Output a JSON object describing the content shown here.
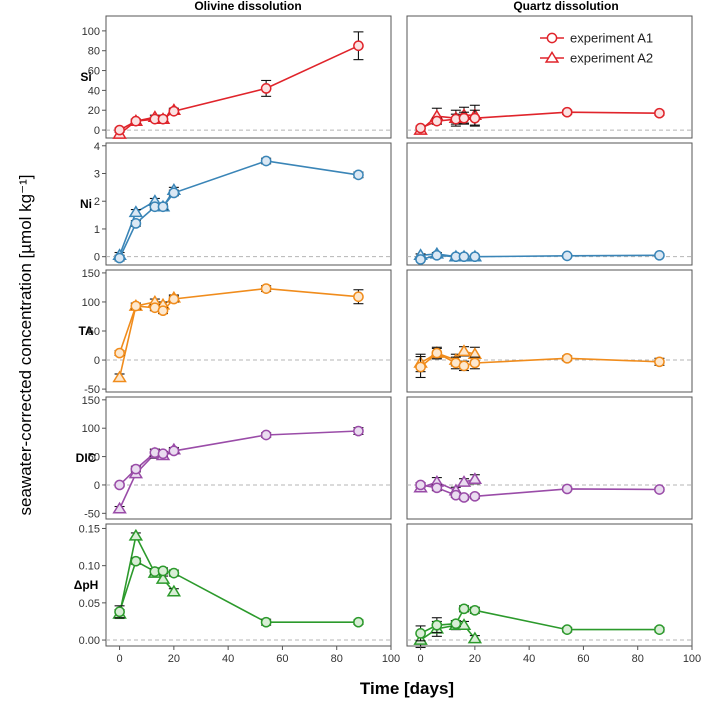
{
  "chart_data": {
    "type": "line",
    "x_axis": {
      "label": "Time [days]",
      "range": [
        -5,
        100
      ],
      "ticks": [
        0,
        20,
        40,
        60,
        80,
        100
      ]
    },
    "y_axis_label": "seawater-corrected concentration [µmol kg⁻¹]",
    "columns": [
      "Olivine dissolution",
      "Quartz dissolution"
    ],
    "legend": {
      "A1": {
        "label": "experiment A1",
        "marker": "circle"
      },
      "A2": {
        "label": "experiment A2",
        "marker": "triangle"
      }
    },
    "rows": [
      {
        "label": "Si",
        "color": "#e0242b",
        "fill": "#fbe2e2",
        "ylim": [
          -8,
          115
        ],
        "yticks": [
          0,
          20,
          40,
          60,
          80,
          100
        ],
        "olivine": {
          "A1": {
            "x": [
              0,
              6,
              13,
              16,
              20,
              54,
              88
            ],
            "y": [
              0,
              9,
              11,
              11,
              19,
              42,
              85
            ],
            "err": [
              2,
              2,
              2,
              2,
              2,
              8,
              14
            ]
          },
          "A2": {
            "x": [
              0,
              6,
              13,
              16,
              20
            ],
            "y": [
              -4,
              9,
              13,
              11,
              20
            ],
            "err": [
              2,
              2,
              2,
              2,
              2
            ]
          }
        },
        "quartz": {
          "A1": {
            "x": [
              0,
              6,
              13,
              16,
              20,
              54,
              88
            ],
            "y": [
              2,
              9,
              11,
              12,
              12,
              18,
              17
            ],
            "err": [
              2,
              3,
              5,
              6,
              8,
              2,
              2
            ]
          },
          "A2": {
            "x": [
              0,
              6,
              13,
              16,
              20
            ],
            "y": [
              0,
              14,
              12,
              15,
              15
            ],
            "err": [
              2,
              8,
              8,
              8,
              10
            ]
          }
        }
      },
      {
        "label": "Ni",
        "color": "#3a85b7",
        "fill": "#dbe8f4",
        "ylim": [
          -0.3,
          4.1
        ],
        "yticks": [
          0,
          1,
          2,
          3,
          4
        ],
        "olivine": {
          "A1": {
            "x": [
              0,
              6,
              13,
              16,
              20,
              54,
              88
            ],
            "y": [
              -0.05,
              1.2,
              1.8,
              1.8,
              2.3,
              3.45,
              2.95
            ],
            "err": [
              0.1,
              0.1,
              0.1,
              0.1,
              0.1,
              0.1,
              0.1
            ]
          },
          "A2": {
            "x": [
              0,
              6,
              13,
              16,
              20
            ],
            "y": [
              0.05,
              1.6,
              2.0,
              1.8,
              2.4
            ],
            "err": [
              0.1,
              0.1,
              0.1,
              0.1,
              0.1
            ]
          }
        },
        "quartz": {
          "A1": {
            "x": [
              0,
              6,
              13,
              16,
              20,
              54,
              88
            ],
            "y": [
              -0.1,
              0.05,
              0.0,
              0.0,
              0.0,
              0.03,
              0.05
            ],
            "err": [
              0.05,
              0.05,
              0.05,
              0.05,
              0.05,
              0.05,
              0.05
            ]
          },
          "A2": {
            "x": [
              0,
              6,
              13,
              16,
              20
            ],
            "y": [
              0.05,
              0.1,
              0.0,
              0.0,
              0.0
            ],
            "err": [
              0.05,
              0.05,
              0.05,
              0.05,
              0.05
            ]
          }
        }
      },
      {
        "label": "TA",
        "color": "#f08c1c",
        "fill": "#fde8cf",
        "ylim": [
          -55,
          155
        ],
        "yticks": [
          -50,
          0,
          50,
          100,
          150
        ],
        "olivine": {
          "A1": {
            "x": [
              0,
              6,
              13,
              16,
              20,
              54,
              88
            ],
            "y": [
              12,
              93,
              90,
              85,
              105,
              123,
              109
            ],
            "err": [
              4,
              5,
              5,
              5,
              5,
              5,
              12
            ]
          },
          "A2": {
            "x": [
              0,
              6,
              13,
              16,
              20
            ],
            "y": [
              -30,
              93,
              100,
              95,
              107
            ],
            "err": [
              6,
              5,
              5,
              5,
              5
            ]
          }
        },
        "quartz": {
          "A1": {
            "x": [
              0,
              6,
              13,
              16,
              20,
              54,
              88
            ],
            "y": [
              -12,
              12,
              -5,
              -10,
              -5,
              3,
              -3
            ],
            "err": [
              18,
              10,
              10,
              8,
              10,
              4,
              6
            ]
          },
          "A2": {
            "x": [
              0,
              6,
              13,
              16,
              20
            ],
            "y": [
              -5,
              12,
              0,
              15,
              10
            ],
            "err": [
              15,
              8,
              10,
              8,
              12
            ]
          }
        }
      },
      {
        "label": "DIC",
        "color": "#9a4ca8",
        "fill": "#eadcf0",
        "ylim": [
          -60,
          155
        ],
        "yticks": [
          -50,
          0,
          50,
          100,
          150
        ],
        "olivine": {
          "A1": {
            "x": [
              0,
              6,
              13,
              16,
              20,
              54,
              88
            ],
            "y": [
              0,
              28,
              57,
              55,
              60,
              88,
              95
            ],
            "err": [
              3,
              5,
              6,
              4,
              4,
              4,
              6
            ]
          },
          "A2": {
            "x": [
              0,
              6,
              13,
              16,
              20
            ],
            "y": [
              -42,
              20,
              55,
              52,
              62
            ],
            "err": [
              4,
              5,
              8,
              6,
              4
            ]
          }
        },
        "quartz": {
          "A1": {
            "x": [
              0,
              6,
              13,
              16,
              20,
              54,
              88
            ],
            "y": [
              0,
              -5,
              -18,
              -22,
              -20,
              -7,
              -8
            ],
            "err": [
              4,
              5,
              4,
              4,
              4,
              3,
              3
            ]
          },
          "A2": {
            "x": [
              0,
              6,
              13,
              16,
              20
            ],
            "y": [
              -5,
              5,
              -10,
              5,
              10
            ],
            "err": [
              4,
              8,
              6,
              6,
              8
            ]
          }
        }
      },
      {
        "label": "ΔpH",
        "color": "#2c9a2c",
        "fill": "#d9eed6",
        "ylim": [
          -0.008,
          0.156
        ],
        "yticks": [
          0.0,
          0.05,
          0.1,
          0.15
        ],
        "yticklabels": [
          "0.00",
          "0.05",
          "0.10",
          "0.15"
        ],
        "olivine": {
          "A1": {
            "x": [
              0,
              6,
              13,
              16,
              20,
              54,
              88
            ],
            "y": [
              0.038,
              0.106,
              0.092,
              0.093,
              0.09,
              0.024,
              0.024
            ],
            "err": [
              0.008,
              0.004,
              0.004,
              0.004,
              0.004,
              0.004,
              0.003
            ]
          },
          "A2": {
            "x": [
              0,
              6,
              13,
              16,
              20
            ],
            "y": [
              0.035,
              0.14,
              0.09,
              0.082,
              0.065
            ],
            "err": [
              0.006,
              0.004,
              0.004,
              0.004,
              0.004
            ]
          }
        },
        "quartz": {
          "A1": {
            "x": [
              0,
              6,
              13,
              16,
              20,
              54,
              88
            ],
            "y": [
              0.009,
              0.02,
              0.022,
              0.042,
              0.04,
              0.014,
              0.014
            ],
            "err": [
              0.01,
              0.01,
              0.004,
              0.004,
              0.004,
              0.003,
              0.003
            ]
          },
          "A2": {
            "x": [
              0,
              6,
              13,
              16,
              20
            ],
            "y": [
              0.0,
              0.015,
              0.02,
              0.02,
              0.002
            ],
            "err": [
              0.01,
              0.01,
              0.006,
              0.005,
              0.004
            ]
          }
        }
      }
    ]
  }
}
